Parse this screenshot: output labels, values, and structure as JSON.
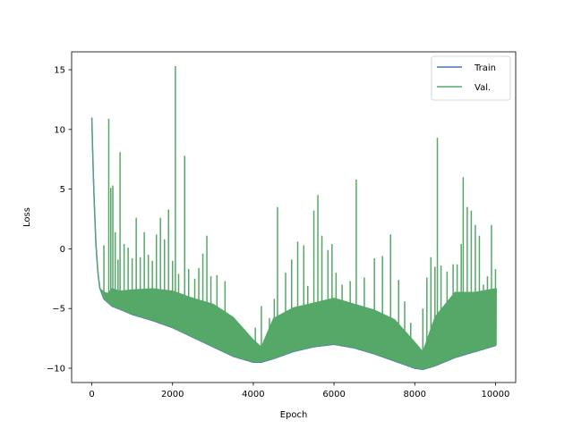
{
  "chart_data": {
    "type": "line",
    "xlabel": "Epoch",
    "ylabel": "Loss",
    "xlim": [
      -500,
      10500
    ],
    "ylim": [
      -11.2,
      16.5
    ],
    "xticks": [
      0,
      2000,
      4000,
      6000,
      8000,
      10000
    ],
    "yticks": [
      -10,
      -5,
      0,
      5,
      10,
      15
    ],
    "grid": false,
    "legend_position": "top-right",
    "series": [
      {
        "name": "Train",
        "color": "#4C72B0",
        "x": [
          0,
          30,
          60,
          100,
          150,
          200,
          300,
          500,
          800,
          1000,
          1500,
          2000,
          2500,
          3000,
          3500,
          4000,
          4200,
          4500,
          5000,
          5500,
          6000,
          6500,
          7000,
          7500,
          8000,
          8200,
          8500,
          9000,
          9500,
          10000
        ],
        "values": [
          11.0,
          7.0,
          4.0,
          0.5,
          -2.0,
          -3.3,
          -4.2,
          -4.8,
          -5.2,
          -5.5,
          -6.0,
          -6.6,
          -7.4,
          -8.2,
          -9.0,
          -9.5,
          -9.5,
          -9.2,
          -8.6,
          -8.2,
          -8.0,
          -8.3,
          -8.8,
          -9.4,
          -10.0,
          -10.1,
          -9.8,
          -9.1,
          -8.6,
          -8.1
        ]
      },
      {
        "name": "Val.",
        "color": "#55A868",
        "upper": {
          "x": [
            0,
            30,
            60,
            100,
            150,
            200,
            300,
            400,
            500,
            700,
            1000,
            1500,
            2000,
            2500,
            3000,
            3500,
            4000,
            4200,
            4500,
            5000,
            5500,
            6000,
            6500,
            7000,
            7500,
            8000,
            8200,
            8500,
            9000,
            9500,
            10000
          ],
          "values": [
            11.0,
            7.0,
            4.0,
            0.5,
            -2.0,
            -3.3,
            -3.6,
            -3.7,
            -3.3,
            -3.5,
            -3.4,
            -3.3,
            -3.5,
            -4.1,
            -4.6,
            -5.7,
            -7.6,
            -8.2,
            -5.8,
            -4.9,
            -4.5,
            -4.1,
            -4.6,
            -5.1,
            -5.9,
            -7.8,
            -8.6,
            -5.7,
            -3.6,
            -3.6,
            -3.3
          ]
        },
        "spikes": [
          {
            "x": 300,
            "y": 0.3
          },
          {
            "x": 420,
            "y": 10.9
          },
          {
            "x": 470,
            "y": 5.1
          },
          {
            "x": 520,
            "y": 5.3
          },
          {
            "x": 580,
            "y": 1.4
          },
          {
            "x": 650,
            "y": -0.9
          },
          {
            "x": 700,
            "y": 8.1
          },
          {
            "x": 800,
            "y": 0.4
          },
          {
            "x": 900,
            "y": 0.1
          },
          {
            "x": 1000,
            "y": -0.8
          },
          {
            "x": 1100,
            "y": 2.6
          },
          {
            "x": 1200,
            "y": -0.7
          },
          {
            "x": 1300,
            "y": 1.4
          },
          {
            "x": 1400,
            "y": -0.5
          },
          {
            "x": 1500,
            "y": -1.0
          },
          {
            "x": 1600,
            "y": 1.2
          },
          {
            "x": 1700,
            "y": 2.6
          },
          {
            "x": 1800,
            "y": 0.8
          },
          {
            "x": 1900,
            "y": 3.3
          },
          {
            "x": 2000,
            "y": -1.0
          },
          {
            "x": 2070,
            "y": 15.3
          },
          {
            "x": 2150,
            "y": -2.1
          },
          {
            "x": 2300,
            "y": 7.8
          },
          {
            "x": 2400,
            "y": -1.7
          },
          {
            "x": 2550,
            "y": -2.5
          },
          {
            "x": 2650,
            "y": -1.6
          },
          {
            "x": 2750,
            "y": -0.4
          },
          {
            "x": 2850,
            "y": 1.1
          },
          {
            "x": 2950,
            "y": -2.3
          },
          {
            "x": 3100,
            "y": -2.2
          },
          {
            "x": 3300,
            "y": -2.7
          },
          {
            "x": 4050,
            "y": -6.6
          },
          {
            "x": 4200,
            "y": -4.8
          },
          {
            "x": 4400,
            "y": -5.8
          },
          {
            "x": 4520,
            "y": -4.2
          },
          {
            "x": 4600,
            "y": 3.5
          },
          {
            "x": 4800,
            "y": -2.0
          },
          {
            "x": 4950,
            "y": -0.9
          },
          {
            "x": 5100,
            "y": 0.6
          },
          {
            "x": 5250,
            "y": 0.3
          },
          {
            "x": 5350,
            "y": -3.1
          },
          {
            "x": 5500,
            "y": 3.2
          },
          {
            "x": 5600,
            "y": 4.5
          },
          {
            "x": 5700,
            "y": 1.1
          },
          {
            "x": 5850,
            "y": -0.1
          },
          {
            "x": 5950,
            "y": 0.4
          },
          {
            "x": 6050,
            "y": -2.0
          },
          {
            "x": 6200,
            "y": -3.0
          },
          {
            "x": 6400,
            "y": -2.7
          },
          {
            "x": 6550,
            "y": 5.8
          },
          {
            "x": 6750,
            "y": -2.4
          },
          {
            "x": 7000,
            "y": -0.8
          },
          {
            "x": 7200,
            "y": -0.6
          },
          {
            "x": 7400,
            "y": 1.2
          },
          {
            "x": 7600,
            "y": -2.6
          },
          {
            "x": 7750,
            "y": -4.4
          },
          {
            "x": 7900,
            "y": -6.2
          },
          {
            "x": 8200,
            "y": -5.0
          },
          {
            "x": 8300,
            "y": -2.4
          },
          {
            "x": 8400,
            "y": -0.7
          },
          {
            "x": 8500,
            "y": -1.5
          },
          {
            "x": 8560,
            "y": 9.3
          },
          {
            "x": 8650,
            "y": -1.4
          },
          {
            "x": 8800,
            "y": -1.9
          },
          {
            "x": 8950,
            "y": -1.3
          },
          {
            "x": 9050,
            "y": -1.3
          },
          {
            "x": 9150,
            "y": 0.4
          },
          {
            "x": 9200,
            "y": 6.0
          },
          {
            "x": 9300,
            "y": 3.5
          },
          {
            "x": 9400,
            "y": 3.2
          },
          {
            "x": 9500,
            "y": 2.0
          },
          {
            "x": 9600,
            "y": 1.1
          },
          {
            "x": 9700,
            "y": -3.0
          },
          {
            "x": 9800,
            "y": -2.3
          },
          {
            "x": 9900,
            "y": 2.0
          },
          {
            "x": 10000,
            "y": -1.7
          }
        ]
      }
    ]
  }
}
